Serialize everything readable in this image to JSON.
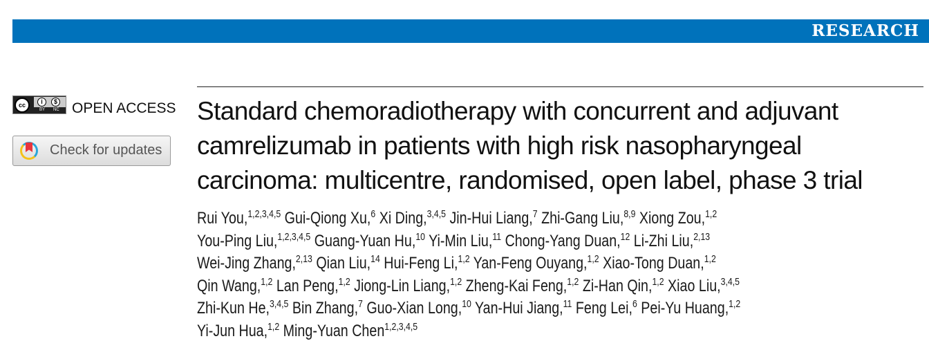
{
  "banner": {
    "label": "RESEARCH",
    "color": "#0072bb"
  },
  "license": {
    "icon": "cc-by-nc-icon",
    "cc": "cc",
    "by": "BY",
    "nc": "NC",
    "label": "OPEN ACCESS"
  },
  "updates": {
    "label": "Check for updates",
    "icon": "crossmark-icon"
  },
  "title": "Standard chemoradiotherapy with concurrent and adjuvant camrelizumab in patients with high risk nasopharyngeal carcinoma: multicentre, randomised, open label, phase 3 trial",
  "authors": [
    [
      {
        "n": "Rui You,",
        "s": "1,2,3,4,5"
      },
      {
        "n": "Gui-Qiong Xu,",
        "s": "6"
      },
      {
        "n": "Xi Ding,",
        "s": "3,4,5"
      },
      {
        "n": "Jin-Hui Liang,",
        "s": "7"
      },
      {
        "n": "Zhi-Gang Liu,",
        "s": "8,9"
      },
      {
        "n": "Xiong Zou,",
        "s": "1,2"
      }
    ],
    [
      {
        "n": "You-Ping Liu,",
        "s": "1,2,3,4,5"
      },
      {
        "n": "Guang-Yuan Hu,",
        "s": "10"
      },
      {
        "n": "Yi-Min Liu,",
        "s": "11"
      },
      {
        "n": "Chong-Yang Duan,",
        "s": "12"
      },
      {
        "n": "Li-Zhi Liu,",
        "s": "2,13"
      }
    ],
    [
      {
        "n": "Wei-Jing Zhang,",
        "s": "2,13"
      },
      {
        "n": "Qian Liu,",
        "s": "14"
      },
      {
        "n": "Hui-Feng Li,",
        "s": "1,2"
      },
      {
        "n": "Yan-Feng Ouyang,",
        "s": "1,2"
      },
      {
        "n": "Xiao-Tong Duan,",
        "s": "1,2"
      }
    ],
    [
      {
        "n": "Qin Wang,",
        "s": "1,2"
      },
      {
        "n": "Lan Peng,",
        "s": "1,2"
      },
      {
        "n": "Jiong-Lin Liang,",
        "s": "1,2"
      },
      {
        "n": "Zheng-Kai Feng,",
        "s": "1,2"
      },
      {
        "n": "Zi-Han Qin,",
        "s": "1,2"
      },
      {
        "n": "Xiao Liu,",
        "s": "3,4,5"
      }
    ],
    [
      {
        "n": "Zhi-Kun He,",
        "s": "3,4,5"
      },
      {
        "n": "Bin Zhang,",
        "s": "7"
      },
      {
        "n": "Guo-Xian Long,",
        "s": "10"
      },
      {
        "n": "Yan-Hui Jiang,",
        "s": "11"
      },
      {
        "n": "Feng Lei,",
        "s": "6"
      },
      {
        "n": "Pei-Yu Huang,",
        "s": "1,2"
      }
    ],
    [
      {
        "n": "Yi-Jun Hua,",
        "s": "1,2"
      },
      {
        "n": "Ming-Yuan Chen",
        "s": "1,2,3,4,5"
      }
    ]
  ]
}
